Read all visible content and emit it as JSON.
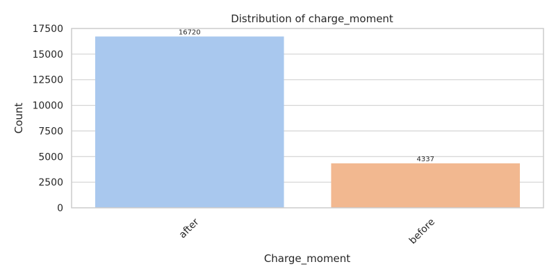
{
  "chart_data": {
    "type": "bar",
    "title": "Distribution of charge_moment",
    "xlabel": "Charge_moment",
    "ylabel": "Count",
    "categories": [
      "after",
      "before"
    ],
    "values": [
      16720,
      4337
    ],
    "data_labels": [
      "16720",
      "4337"
    ],
    "ylim": [
      0,
      17500
    ],
    "yticks": [
      0,
      2500,
      5000,
      7500,
      10000,
      12500,
      15000,
      17500
    ],
    "ytick_labels": [
      "0",
      "2500",
      "5000",
      "7500",
      "10000",
      "12500",
      "15000",
      "17500"
    ],
    "colors": [
      "#a9c8ee",
      "#f2b890"
    ],
    "grid": "horizontal",
    "xtick_rotation": 45
  }
}
